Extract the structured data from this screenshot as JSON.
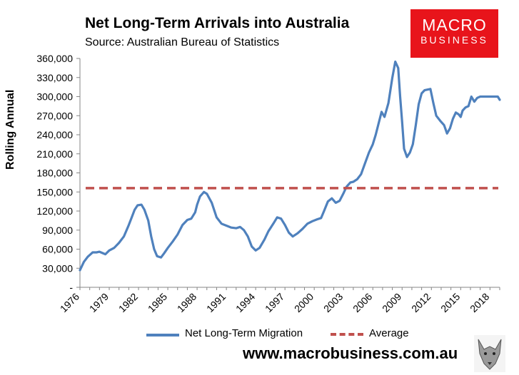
{
  "title": "Net Long-Term Arrivals into Australia",
  "subtitle": "Source: Australian Bureau of Statistics",
  "logo": {
    "line1": "MACRO",
    "line2": "BUSINESS"
  },
  "website": "www.macrobusiness.com.au",
  "colors": {
    "series": "#4f81bd",
    "average": "#c0504d",
    "brand": "#e8141b"
  },
  "chart_data": {
    "type": "line",
    "ylabel": "Rolling Annual",
    "xlabel": "",
    "ylim": [
      0,
      360000
    ],
    "xlim": [
      1976.0,
      2019.0
    ],
    "y_ticks": [
      0,
      30000,
      60000,
      90000,
      120000,
      150000,
      180000,
      210000,
      240000,
      270000,
      300000,
      330000,
      360000
    ],
    "y_tick_labels": [
      "-",
      "30,000",
      "60,000",
      "90,000",
      "120,000",
      "150,000",
      "180,000",
      "210,000",
      "240,000",
      "270,000",
      "300,000",
      "330,000",
      "360,000"
    ],
    "x_ticks": [
      1976,
      1979,
      1982,
      1985,
      1988,
      1991,
      1994,
      1997,
      2000,
      2003,
      2006,
      2009,
      2012,
      2015,
      2018
    ],
    "x_tick_labels": [
      "1976",
      "1979",
      "1982",
      "1985",
      "1988",
      "1991",
      "1994",
      "1997",
      "2000",
      "2003",
      "2006",
      "2009",
      "2012",
      "2015",
      "2018"
    ],
    "series": [
      {
        "name": "Net Long-Term Migration",
        "x": [
          1976.0,
          1976.4,
          1976.8,
          1977.3,
          1977.7,
          1978.0,
          1978.6,
          1979.0,
          1979.5,
          1980.0,
          1980.5,
          1981.0,
          1981.3,
          1981.6,
          1981.9,
          1982.3,
          1982.6,
          1983.0,
          1983.3,
          1983.6,
          1983.9,
          1984.3,
          1984.6,
          1985.0,
          1985.5,
          1986.0,
          1986.5,
          1987.0,
          1987.4,
          1987.8,
          1988.0,
          1988.3,
          1988.7,
          1989.0,
          1989.5,
          1990.0,
          1990.5,
          1991.0,
          1991.5,
          1992.0,
          1992.4,
          1992.8,
          1993.2,
          1993.6,
          1994.0,
          1994.4,
          1994.9,
          1995.3,
          1995.8,
          1996.2,
          1996.6,
          1997.0,
          1997.4,
          1997.8,
          1998.3,
          1998.8,
          1999.3,
          1999.8,
          2000.3,
          2000.7,
          2001.0,
          2001.4,
          2001.8,
          2002.2,
          2002.6,
          2003.0,
          2003.3,
          2003.7,
          2004.0,
          2004.4,
          2004.8,
          2005.2,
          2005.6,
          2006.0,
          2006.3,
          2006.6,
          2006.9,
          2007.2,
          2007.6,
          2008.0,
          2008.3,
          2008.6,
          2008.8,
          2009.0,
          2009.2,
          2009.5,
          2009.8,
          2010.1,
          2010.4,
          2010.7,
          2011.0,
          2011.3,
          2011.6,
          2011.9,
          2012.2,
          2012.5,
          2012.9,
          2013.3,
          2013.6,
          2013.9,
          2014.2,
          2014.5,
          2014.8,
          2015.0,
          2015.2,
          2015.5,
          2015.8,
          2016.1,
          2016.4,
          2016.7,
          2017.0,
          2017.2,
          2017.5,
          2017.8,
          2018.1,
          2018.4,
          2018.6,
          2018.8,
          2019.0
        ],
        "values": [
          27000,
          40000,
          48000,
          55000,
          55000,
          56000,
          52000,
          58000,
          62000,
          70000,
          80000,
          98000,
          110000,
          122000,
          129000,
          130000,
          122000,
          105000,
          80000,
          60000,
          49000,
          47000,
          53000,
          62000,
          72000,
          83000,
          98000,
          106000,
          108000,
          118000,
          130000,
          143000,
          150000,
          147000,
          133000,
          110000,
          100000,
          97000,
          94000,
          93000,
          95000,
          90000,
          80000,
          64000,
          58000,
          62000,
          75000,
          88000,
          100000,
          110000,
          108000,
          98000,
          86000,
          80000,
          85000,
          92000,
          100000,
          104000,
          107000,
          109000,
          120000,
          135000,
          140000,
          133000,
          136000,
          148000,
          158000,
          165000,
          166000,
          170000,
          178000,
          195000,
          212000,
          225000,
          240000,
          258000,
          276000,
          268000,
          290000,
          330000,
          355000,
          345000,
          300000,
          260000,
          218000,
          205000,
          212000,
          225000,
          255000,
          288000,
          305000,
          310000,
          311000,
          312000,
          290000,
          270000,
          262000,
          255000,
          242000,
          250000,
          265000,
          275000,
          272000,
          268000,
          278000,
          283000,
          285000,
          300000,
          292000,
          298000,
          300000,
          300000,
          300000,
          300000,
          300000,
          300000,
          300000,
          300000,
          295000
        ]
      },
      {
        "name": "Average",
        "values": [
          156000
        ]
      }
    ],
    "legend": [
      "Net Long-Term Migration",
      "Average"
    ],
    "legend_position": "bottom"
  }
}
